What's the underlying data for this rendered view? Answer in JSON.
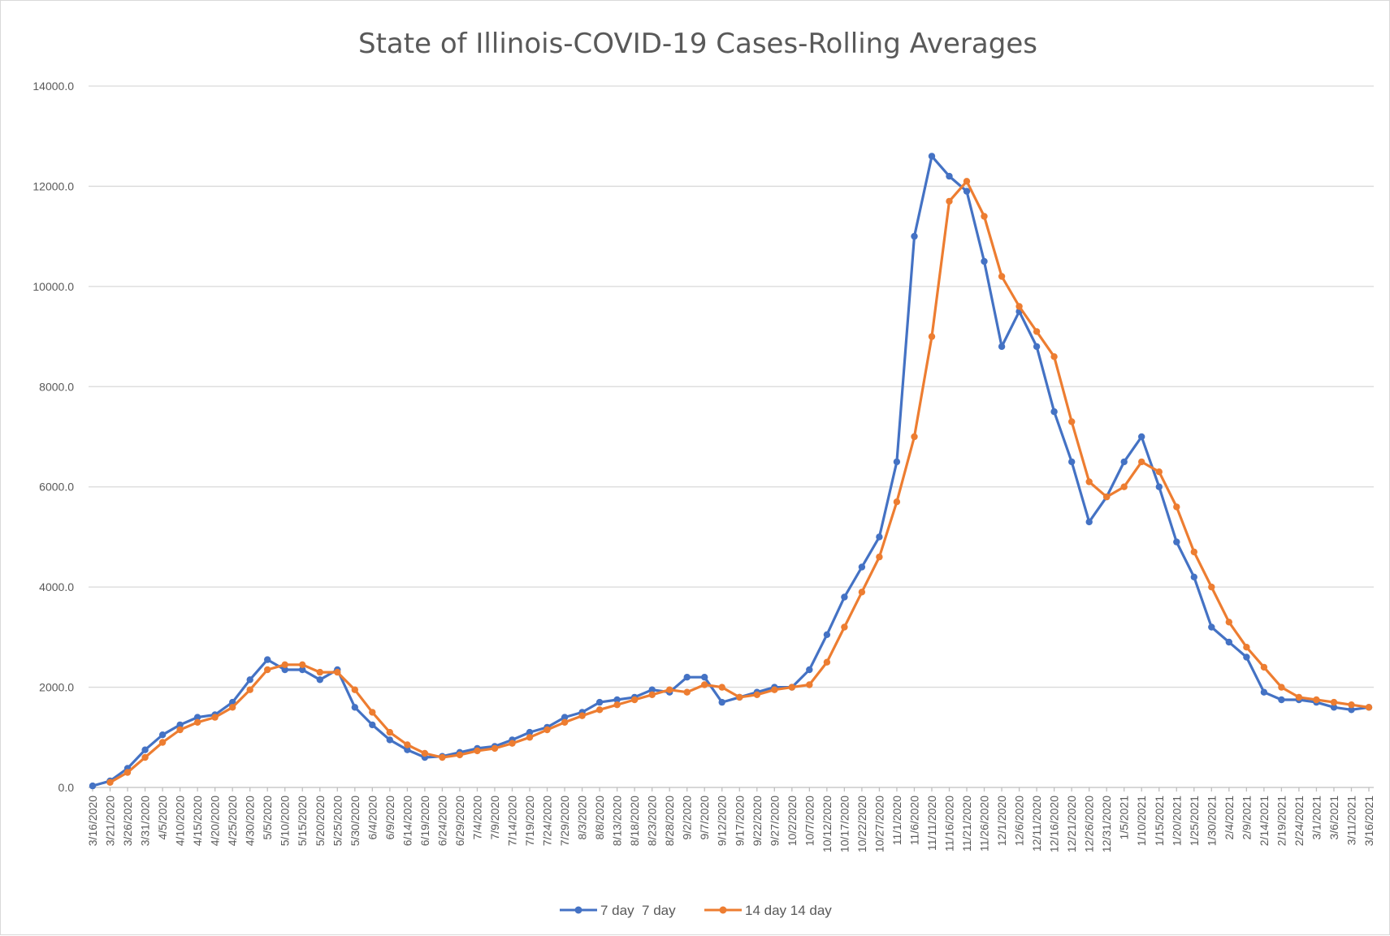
{
  "chart_data": {
    "type": "line",
    "title": "State of Illinois-COVID-19 Cases-Rolling Averages",
    "xlabel": "",
    "ylabel": "",
    "ylim": [
      0,
      14000
    ],
    "y_ticks": [
      "0.0",
      "2000.0",
      "4000.0",
      "6000.0",
      "8000.0",
      "10000.0",
      "12000.0",
      "14000.0"
    ],
    "x_tick_labels": [
      "3/16/2020",
      "3/21/2020",
      "3/26/2020",
      "3/31/2020",
      "4/5/2020",
      "4/10/2020",
      "4/15/2020",
      "4/20/2020",
      "4/25/2020",
      "4/30/2020",
      "5/5/2020",
      "5/10/2020",
      "5/15/2020",
      "5/20/2020",
      "5/25/2020",
      "5/30/2020",
      "6/4/2020",
      "6/9/2020",
      "6/14/2020",
      "6/19/2020",
      "6/24/2020",
      "6/29/2020",
      "7/4/2020",
      "7/9/2020",
      "7/14/2020",
      "7/19/2020",
      "7/24/2020",
      "7/29/2020",
      "8/3/2020",
      "8/8/2020",
      "8/13/2020",
      "8/18/2020",
      "8/23/2020",
      "8/28/2020",
      "9/2/2020",
      "9/7/2020",
      "9/12/2020",
      "9/17/2020",
      "9/22/2020",
      "9/27/2020",
      "10/2/2020",
      "10/7/2020",
      "10/12/2020",
      "10/17/2020",
      "10/22/2020",
      "10/27/2020",
      "11/1/2020",
      "11/6/2020",
      "11/11/2020",
      "11/16/2020",
      "11/21/2020",
      "11/26/2020",
      "12/1/2020",
      "12/6/2020",
      "12/11/2020",
      "12/16/2020",
      "12/21/2020",
      "12/26/2020",
      "12/31/2020",
      "1/5/2021",
      "1/10/2021",
      "1/15/2021",
      "1/20/2021",
      "1/25/2021",
      "1/30/2021",
      "2/4/2021",
      "2/9/2021",
      "2/14/2021",
      "2/19/2021",
      "2/24/2021",
      "3/1/2021",
      "3/6/2021",
      "3/11/2021",
      "3/16/2021"
    ],
    "grid": true,
    "legend_position": "bottom",
    "series": [
      {
        "name": "7 day  7 day",
        "color": "#4472C4",
        "x": [
          "3/16/2020",
          "3/21/2020",
          "3/26/2020",
          "3/31/2020",
          "4/5/2020",
          "4/10/2020",
          "4/15/2020",
          "4/20/2020",
          "4/25/2020",
          "4/30/2020",
          "5/5/2020",
          "5/10/2020",
          "5/15/2020",
          "5/20/2020",
          "5/25/2020",
          "5/30/2020",
          "6/4/2020",
          "6/9/2020",
          "6/14/2020",
          "6/19/2020",
          "6/24/2020",
          "6/29/2020",
          "7/4/2020",
          "7/9/2020",
          "7/14/2020",
          "7/19/2020",
          "7/24/2020",
          "7/29/2020",
          "8/3/2020",
          "8/8/2020",
          "8/13/2020",
          "8/18/2020",
          "8/23/2020",
          "8/28/2020",
          "9/2/2020",
          "9/7/2020",
          "9/12/2020",
          "9/17/2020",
          "9/22/2020",
          "9/27/2020",
          "10/2/2020",
          "10/7/2020",
          "10/12/2020",
          "10/17/2020",
          "10/22/2020",
          "10/27/2020",
          "11/1/2020",
          "11/6/2020",
          "11/11/2020",
          "11/16/2020",
          "11/21/2020",
          "11/26/2020",
          "12/1/2020",
          "12/6/2020",
          "12/11/2020",
          "12/16/2020",
          "12/21/2020",
          "12/26/2020",
          "12/31/2020",
          "1/5/2021",
          "1/10/2021",
          "1/15/2021",
          "1/20/2021",
          "1/25/2021",
          "1/30/2021",
          "2/4/2021",
          "2/9/2021",
          "2/14/2021",
          "2/19/2021",
          "2/24/2021",
          "3/1/2021",
          "3/6/2021",
          "3/11/2021",
          "3/16/2021"
        ],
        "values": [
          30,
          130,
          380,
          750,
          1050,
          1250,
          1400,
          1450,
          1700,
          2150,
          2550,
          2350,
          2350,
          2150,
          2350,
          1600,
          1250,
          950,
          750,
          600,
          620,
          700,
          780,
          820,
          950,
          1100,
          1200,
          1400,
          1500,
          1700,
          1750,
          1800,
          1950,
          1900,
          2200,
          2200,
          1700,
          1800,
          1900,
          2000,
          2000,
          2350,
          3050,
          3800,
          4400,
          5000,
          6500,
          11000,
          12600,
          12200,
          11900,
          10500,
          8800,
          9500,
          8800,
          7500,
          6500,
          5300,
          5800,
          6500,
          7000,
          6000,
          4900,
          4200,
          3200,
          2900,
          2600,
          1900,
          1750,
          1750,
          1700,
          1600,
          1550,
          1600
        ]
      },
      {
        "name": "14 day 14 day",
        "color": "#ED7D31",
        "x": [
          "3/21/2020",
          "3/26/2020",
          "3/31/2020",
          "4/5/2020",
          "4/10/2020",
          "4/15/2020",
          "4/20/2020",
          "4/25/2020",
          "4/30/2020",
          "5/5/2020",
          "5/10/2020",
          "5/15/2020",
          "5/20/2020",
          "5/25/2020",
          "5/30/2020",
          "6/4/2020",
          "6/9/2020",
          "6/14/2020",
          "6/19/2020",
          "6/24/2020",
          "6/29/2020",
          "7/4/2020",
          "7/9/2020",
          "7/14/2020",
          "7/19/2020",
          "7/24/2020",
          "7/29/2020",
          "8/3/2020",
          "8/8/2020",
          "8/13/2020",
          "8/18/2020",
          "8/23/2020",
          "8/28/2020",
          "9/2/2020",
          "9/7/2020",
          "9/12/2020",
          "9/17/2020",
          "9/22/2020",
          "9/27/2020",
          "10/2/2020",
          "10/7/2020",
          "10/12/2020",
          "10/17/2020",
          "10/22/2020",
          "10/27/2020",
          "11/1/2020",
          "11/6/2020",
          "11/11/2020",
          "11/16/2020",
          "11/21/2020",
          "11/26/2020",
          "12/1/2020",
          "12/6/2020",
          "12/11/2020",
          "12/16/2020",
          "12/21/2020",
          "12/26/2020",
          "12/31/2020",
          "1/5/2021",
          "1/10/2021",
          "1/15/2021",
          "1/20/2021",
          "1/25/2021",
          "1/30/2021",
          "2/4/2021",
          "2/9/2021",
          "2/14/2021",
          "2/19/2021",
          "2/24/2021",
          "3/1/2021",
          "3/6/2021",
          "3/11/2021",
          "3/16/2021"
        ],
        "values": [
          100,
          300,
          600,
          900,
          1150,
          1300,
          1400,
          1600,
          1950,
          2350,
          2450,
          2450,
          2300,
          2300,
          1950,
          1500,
          1100,
          850,
          680,
          600,
          650,
          730,
          780,
          880,
          1000,
          1150,
          1300,
          1430,
          1550,
          1650,
          1750,
          1850,
          1950,
          1900,
          2050,
          2000,
          1800,
          1850,
          1950,
          2000,
          2050,
          2500,
          3200,
          3900,
          4600,
          5700,
          7000,
          9000,
          11700,
          12100,
          11400,
          10200,
          9600,
          9100,
          8600,
          7300,
          6100,
          5800,
          6000,
          6500,
          6300,
          5600,
          4700,
          4000,
          3300,
          2800,
          2400,
          2000,
          1800,
          1750,
          1700,
          1650,
          1600
        ]
      }
    ]
  }
}
